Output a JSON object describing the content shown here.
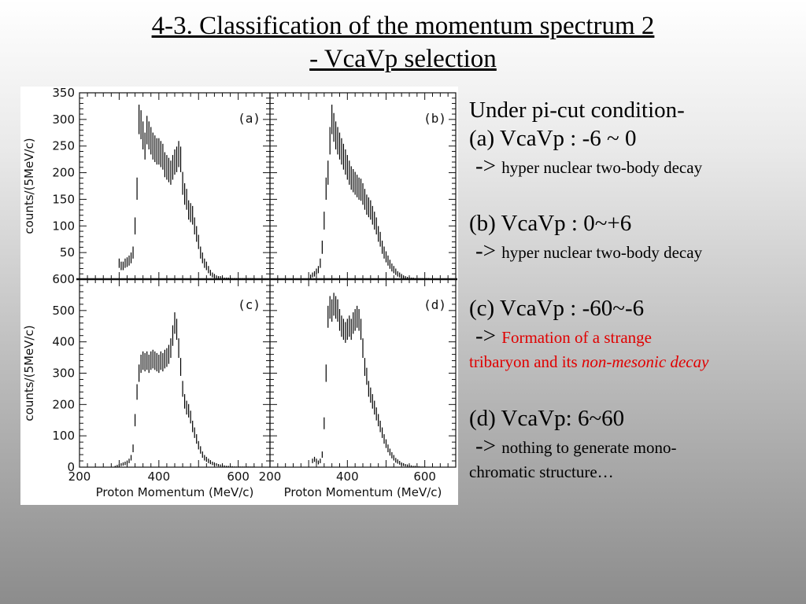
{
  "title": {
    "line1": "4-3. Classification of the momentum spectrum 2",
    "line2": "- VcaVp selection"
  },
  "notes": {
    "header": "Under pi-cut condition-",
    "arrow": "->",
    "items": [
      {
        "label": "(a) VcaVp : -6 ~ 0",
        "text": "hyper nuclear two-body decay"
      },
      {
        "label": "(b) VcaVp : 0~+6",
        "text": "hyper nuclear two-body decay"
      },
      {
        "label": "(c) VcaVp : -60~-6",
        "text": "Formation of a strange",
        "cont_plain": "tribaryon and its ",
        "cont_italic": "non-mesonic decay"
      },
      {
        "label": "(d) VcaVp: 6~60",
        "text": "nothing to generate mono-",
        "cont_plain": "chromatic structure…"
      }
    ]
  },
  "colors": {
    "red_text": "#e00000"
  },
  "chart_data": [
    {
      "type": "scatter",
      "panel": "(a)",
      "ylabel": "counts/(5MeV/c)",
      "xlim": [
        200,
        680
      ],
      "ylim": [
        0,
        350
      ],
      "yticks": [
        "50",
        "100",
        "150",
        "200",
        "250",
        "300",
        "350"
      ],
      "x": [
        300,
        305,
        310,
        315,
        320,
        325,
        330,
        335,
        340,
        345,
        350,
        355,
        360,
        365,
        370,
        375,
        380,
        385,
        390,
        395,
        400,
        405,
        410,
        415,
        420,
        425,
        430,
        435,
        440,
        445,
        450,
        455,
        460,
        465,
        470,
        475,
        480,
        485,
        490,
        495,
        500,
        505,
        510,
        515,
        520,
        525,
        530,
        535,
        540,
        545,
        550,
        555,
        560,
        565,
        570,
        575,
        580,
        585,
        590,
        595,
        600,
        605,
        610,
        615,
        620,
        625,
        630,
        635,
        640
      ],
      "y": [
        30,
        25,
        25,
        30,
        32,
        35,
        40,
        50,
        100,
        170,
        300,
        290,
        270,
        250,
        280,
        270,
        260,
        250,
        245,
        240,
        240,
        235,
        230,
        215,
        210,
        205,
        200,
        210,
        220,
        225,
        235,
        225,
        180,
        160,
        150,
        130,
        125,
        120,
        100,
        85,
        70,
        50,
        40,
        30,
        25,
        18,
        12,
        8,
        6,
        4,
        3,
        3,
        2,
        1,
        1,
        1,
        1,
        0,
        0,
        0,
        0,
        0,
        0,
        0,
        0,
        0,
        0,
        0,
        0
      ]
    },
    {
      "type": "scatter",
      "panel": "(b)",
      "xlim": [
        200,
        680
      ],
      "ylim": [
        0,
        350
      ],
      "x": [
        305,
        310,
        315,
        320,
        325,
        330,
        335,
        340,
        345,
        350,
        355,
        360,
        365,
        370,
        375,
        380,
        385,
        390,
        395,
        400,
        405,
        410,
        415,
        420,
        425,
        430,
        435,
        440,
        445,
        450,
        455,
        460,
        465,
        470,
        475,
        480,
        485,
        490,
        495,
        500,
        505,
        510,
        515,
        520,
        525,
        530,
        535,
        540,
        545,
        550,
        555,
        560,
        565,
        570,
        575,
        580,
        585,
        590,
        595,
        600,
        605,
        610
      ],
      "y": [
        5,
        8,
        10,
        14,
        18,
        30,
        60,
        110,
        170,
        200,
        260,
        300,
        285,
        270,
        260,
        250,
        240,
        230,
        220,
        210,
        200,
        190,
        185,
        180,
        175,
        170,
        168,
        160,
        150,
        140,
        135,
        130,
        120,
        110,
        100,
        85,
        75,
        60,
        50,
        42,
        35,
        28,
        22,
        18,
        14,
        10,
        8,
        6,
        4,
        3,
        2,
        2,
        1,
        1,
        0,
        0,
        0,
        0,
        0,
        0,
        0,
        0
      ]
    },
    {
      "type": "scatter",
      "panel": "(c)",
      "ylabel": "counts/(5MeV/c)",
      "xlim": [
        200,
        680
      ],
      "ylim": [
        0,
        600
      ],
      "yticks": [
        "0",
        "100",
        "200",
        "300",
        "400",
        "500",
        "600"
      ],
      "xticks": [
        "200",
        "400",
        "600"
      ],
      "xlabel": "Proton Momentum (MeV/c)",
      "x": [
        290,
        295,
        300,
        305,
        310,
        315,
        320,
        325,
        330,
        335,
        340,
        345,
        350,
        355,
        360,
        365,
        370,
        375,
        380,
        385,
        390,
        395,
        400,
        405,
        410,
        415,
        420,
        425,
        430,
        435,
        440,
        445,
        450,
        455,
        460,
        465,
        470,
        475,
        480,
        485,
        490,
        495,
        500,
        505,
        510,
        515,
        520,
        525,
        530,
        535,
        540,
        545,
        550,
        555,
        560,
        565,
        570,
        575,
        580,
        585,
        590,
        595,
        600,
        605,
        610,
        615,
        620,
        625,
        630,
        635,
        640
      ],
      "y": [
        2,
        4,
        6,
        8,
        10,
        12,
        15,
        20,
        30,
        60,
        150,
        240,
        300,
        330,
        340,
        335,
        340,
        330,
        340,
        345,
        340,
        335,
        330,
        340,
        335,
        345,
        350,
        360,
        380,
        420,
        460,
        440,
        380,
        320,
        250,
        210,
        190,
        180,
        160,
        130,
        110,
        90,
        70,
        55,
        40,
        30,
        25,
        20,
        16,
        12,
        10,
        8,
        6,
        5,
        4,
        3,
        2,
        2,
        1,
        1,
        0,
        0,
        0,
        0,
        0,
        0,
        0,
        0,
        0,
        0,
        0
      ]
    },
    {
      "type": "scatter",
      "panel": "(d)",
      "xlim": [
        200,
        680
      ],
      "ylim": [
        0,
        600
      ],
      "xticks": [
        "200",
        "400",
        "600"
      ],
      "xlabel": "Proton Momentum (MeV/c)",
      "x": [
        310,
        315,
        320,
        325,
        330,
        335,
        340,
        345,
        350,
        355,
        360,
        365,
        370,
        375,
        380,
        385,
        390,
        395,
        400,
        405,
        410,
        415,
        420,
        425,
        430,
        435,
        440,
        445,
        450,
        455,
        460,
        465,
        470,
        475,
        480,
        485,
        490,
        495,
        500,
        505,
        510,
        515,
        520,
        525,
        530,
        535,
        540,
        545,
        550,
        555,
        560,
        565,
        570,
        575,
        580,
        585,
        590,
        595,
        600
      ],
      "y": [
        20,
        25,
        20,
        15,
        20,
        40,
        140,
        300,
        480,
        510,
        500,
        520,
        510,
        500,
        470,
        450,
        440,
        430,
        440,
        450,
        440,
        460,
        470,
        480,
        470,
        440,
        380,
        320,
        290,
        250,
        230,
        210,
        190,
        170,
        150,
        130,
        110,
        90,
        75,
        60,
        48,
        38,
        30,
        22,
        18,
        14,
        10,
        8,
        6,
        5,
        4,
        3,
        2,
        2,
        1,
        1,
        0,
        0,
        0
      ]
    }
  ]
}
